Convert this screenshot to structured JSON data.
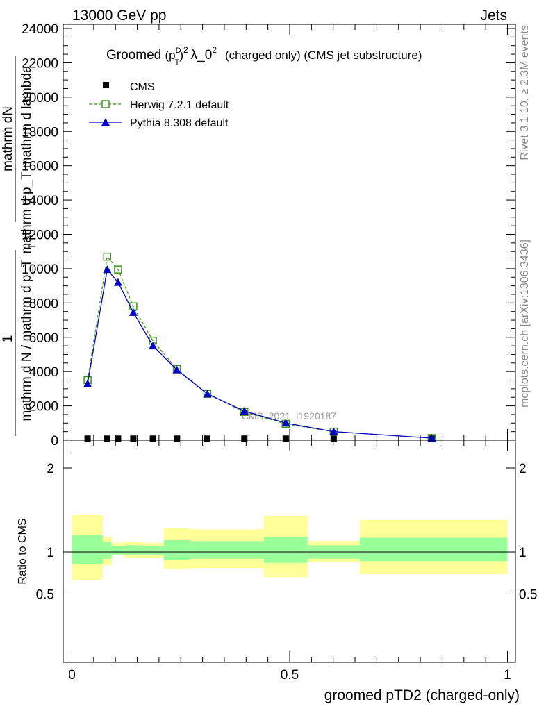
{
  "header": {
    "energy_label": "13000 GeV pp",
    "process_label": "Jets",
    "side_rivet": "Rivet 3.1.10, ≥ 2.3M events",
    "side_mcplots": "mcplots.cern.ch [arXiv:1306.3436]"
  },
  "chart_data": [
    {
      "type": "line",
      "title_prefix": "Groomed",
      "title_p": "p",
      "title_sup_d": "D",
      "title_sub_t": "T",
      "title_sup_2": "2",
      "title_lambda": "λ_0",
      "title_sup_2b": "2",
      "title_suffix": "(charged only) (CMS jet substructure)",
      "watermark": "CMS_2021_I1920187",
      "ylabel": {
        "top_numerator": "mathrm dN",
        "top_denominator": "mathrm d p_T mathrm d lambda",
        "one": "1",
        "bottom_denominator": "mathrm d N / mathrm d p_T",
        "bottom_sub": "T"
      },
      "ylim": [
        0,
        24000
      ],
      "xlim": [
        0,
        1
      ],
      "y_ticks": [
        0,
        2000,
        4000,
        6000,
        8000,
        10000,
        12000,
        14000,
        16000,
        18000,
        20000,
        22000,
        24000
      ],
      "y_tick_labels": [
        "0",
        "2000",
        "4000",
        "6000",
        "8000",
        "10000",
        "12000",
        "14000",
        "16000",
        "18000",
        "20000",
        "22000",
        "24000"
      ],
      "legend_position": "top-left",
      "series": [
        {
          "name": "CMS",
          "color": "#000000",
          "marker": "square-filled",
          "x": [
            0.036,
            0.081,
            0.106,
            0.141,
            0.186,
            0.241,
            0.311,
            0.396,
            0.491,
            0.601,
            0.826
          ],
          "y": [
            30,
            30,
            30,
            30,
            30,
            30,
            30,
            30,
            30,
            30,
            30
          ]
        },
        {
          "name": "Herwig 7.2.1 default",
          "color": "#3a9a1a",
          "marker": "square-open",
          "dash": true,
          "x": [
            0.036,
            0.081,
            0.106,
            0.141,
            0.186,
            0.241,
            0.311,
            0.396,
            0.491,
            0.601,
            0.826
          ],
          "y": [
            3500,
            10700,
            9950,
            7800,
            5800,
            4150,
            2700,
            1650,
            950,
            500,
            120
          ]
        },
        {
          "name": "Pythia 8.308 default",
          "color": "#0000cc",
          "marker": "triangle-filled",
          "dash": false,
          "x": [
            0.036,
            0.081,
            0.106,
            0.141,
            0.186,
            0.241,
            0.311,
            0.396,
            0.491,
            0.601,
            0.826
          ],
          "y": [
            3300,
            9950,
            9200,
            7450,
            5500,
            4100,
            2700,
            1700,
            1000,
            500,
            120
          ]
        }
      ]
    },
    {
      "type": "area",
      "ylabel": "Ratio to CMS",
      "xlabel": "groomed pTD2 (charged-only)",
      "ylim": [
        0.4,
        2.3
      ],
      "xlim": [
        0,
        1
      ],
      "x_ticks": [
        0,
        0.5,
        1
      ],
      "x_tick_labels": [
        "0",
        "0.5",
        "1"
      ],
      "y_ticks": [
        0.5,
        1,
        2
      ],
      "y_tick_labels": [
        "0.5",
        "1",
        "2"
      ],
      "band_colors": {
        "outer": "#ffff99",
        "inner": "#99ff99",
        "line": "#000000"
      },
      "bins": [
        {
          "x0": 0.0,
          "x1": 0.071,
          "outer_lo": 0.67,
          "outer_hi": 1.44,
          "inner_lo": 0.86,
          "inner_hi": 1.2
        },
        {
          "x0": 0.071,
          "x1": 0.091,
          "outer_lo": 0.84,
          "outer_hi": 1.18,
          "inner_lo": 0.92,
          "inner_hi": 1.12
        },
        {
          "x0": 0.091,
          "x1": 0.121,
          "outer_lo": 0.96,
          "outer_hi": 1.11,
          "inner_lo": 0.97,
          "inner_hi": 1.07
        },
        {
          "x0": 0.121,
          "x1": 0.161,
          "outer_lo": 0.93,
          "outer_hi": 1.12,
          "inner_lo": 0.96,
          "inner_hi": 1.08
        },
        {
          "x0": 0.161,
          "x1": 0.211,
          "outer_lo": 0.93,
          "outer_hi": 1.11,
          "inner_lo": 0.96,
          "inner_hi": 1.07
        },
        {
          "x0": 0.211,
          "x1": 0.271,
          "outer_lo": 0.8,
          "outer_hi": 1.28,
          "inner_lo": 0.91,
          "inner_hi": 1.14
        },
        {
          "x0": 0.271,
          "x1": 0.441,
          "outer_lo": 0.81,
          "outer_hi": 1.27,
          "inner_lo": 0.92,
          "inner_hi": 1.13
        },
        {
          "x0": 0.441,
          "x1": 0.541,
          "outer_lo": 0.7,
          "outer_hi": 1.43,
          "inner_lo": 0.87,
          "inner_hi": 1.18
        },
        {
          "x0": 0.541,
          "x1": 0.661,
          "outer_lo": 0.88,
          "outer_hi": 1.13,
          "inner_lo": 0.92,
          "inner_hi": 1.08
        },
        {
          "x0": 0.661,
          "x1": 1.0,
          "outer_lo": 0.74,
          "outer_hi": 1.38,
          "inner_lo": 0.89,
          "inner_hi": 1.17
        }
      ]
    }
  ]
}
